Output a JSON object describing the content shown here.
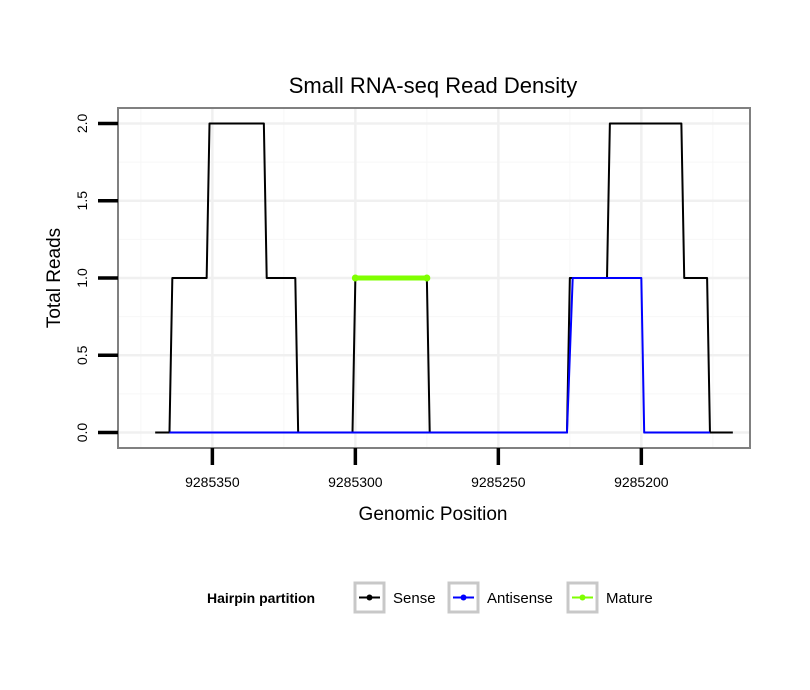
{
  "chart_data": {
    "type": "line",
    "title": "Small RNA-seq Read Density",
    "xlabel": "Genomic Position",
    "ylabel": "Total Reads",
    "xlim": [
      9285383,
      9285162
    ],
    "ylim": [
      -0.1,
      2.1
    ],
    "x_ticks": [
      9285350,
      9285300,
      9285250,
      9285200
    ],
    "x_tick_labels": [
      "9285350",
      "9285300",
      "9285250",
      "9285200"
    ],
    "y_ticks": [
      0.0,
      0.5,
      1.0,
      1.5,
      2.0
    ],
    "y_tick_labels": [
      "0.0",
      "0.5",
      "1.0",
      "1.5",
      "2.0"
    ],
    "grid": true,
    "legend": {
      "title": "Hairpin partition",
      "placement": "bottom",
      "entries": [
        "Sense",
        "Antisense",
        "Mature"
      ]
    },
    "series": [
      {
        "name": "Sense",
        "color": "#000000",
        "x": [
          9285370,
          9285365,
          9285364,
          9285352,
          9285351,
          9285332,
          9285331,
          9285321,
          9285320,
          9285301,
          9285300,
          9285275,
          9285274,
          9285226,
          9285225,
          9285212,
          9285211,
          9285186,
          9285185,
          9285177,
          9285176,
          9285168
        ],
        "y": [
          0,
          0,
          1,
          1,
          2,
          2,
          1,
          1,
          0,
          0,
          1,
          1,
          0,
          0,
          1,
          1,
          2,
          2,
          1,
          1,
          0,
          0
        ]
      },
      {
        "name": "Antisense",
        "color": "#0000ff",
        "x": [
          9285365,
          9285226,
          9285224,
          9285200,
          9285199,
          9285176
        ],
        "y": [
          0,
          0,
          1,
          1,
          0,
          0
        ]
      },
      {
        "name": "Mature",
        "color": "#7fff00",
        "x": [
          9285300,
          9285275
        ],
        "y": [
          1,
          1
        ]
      }
    ]
  }
}
